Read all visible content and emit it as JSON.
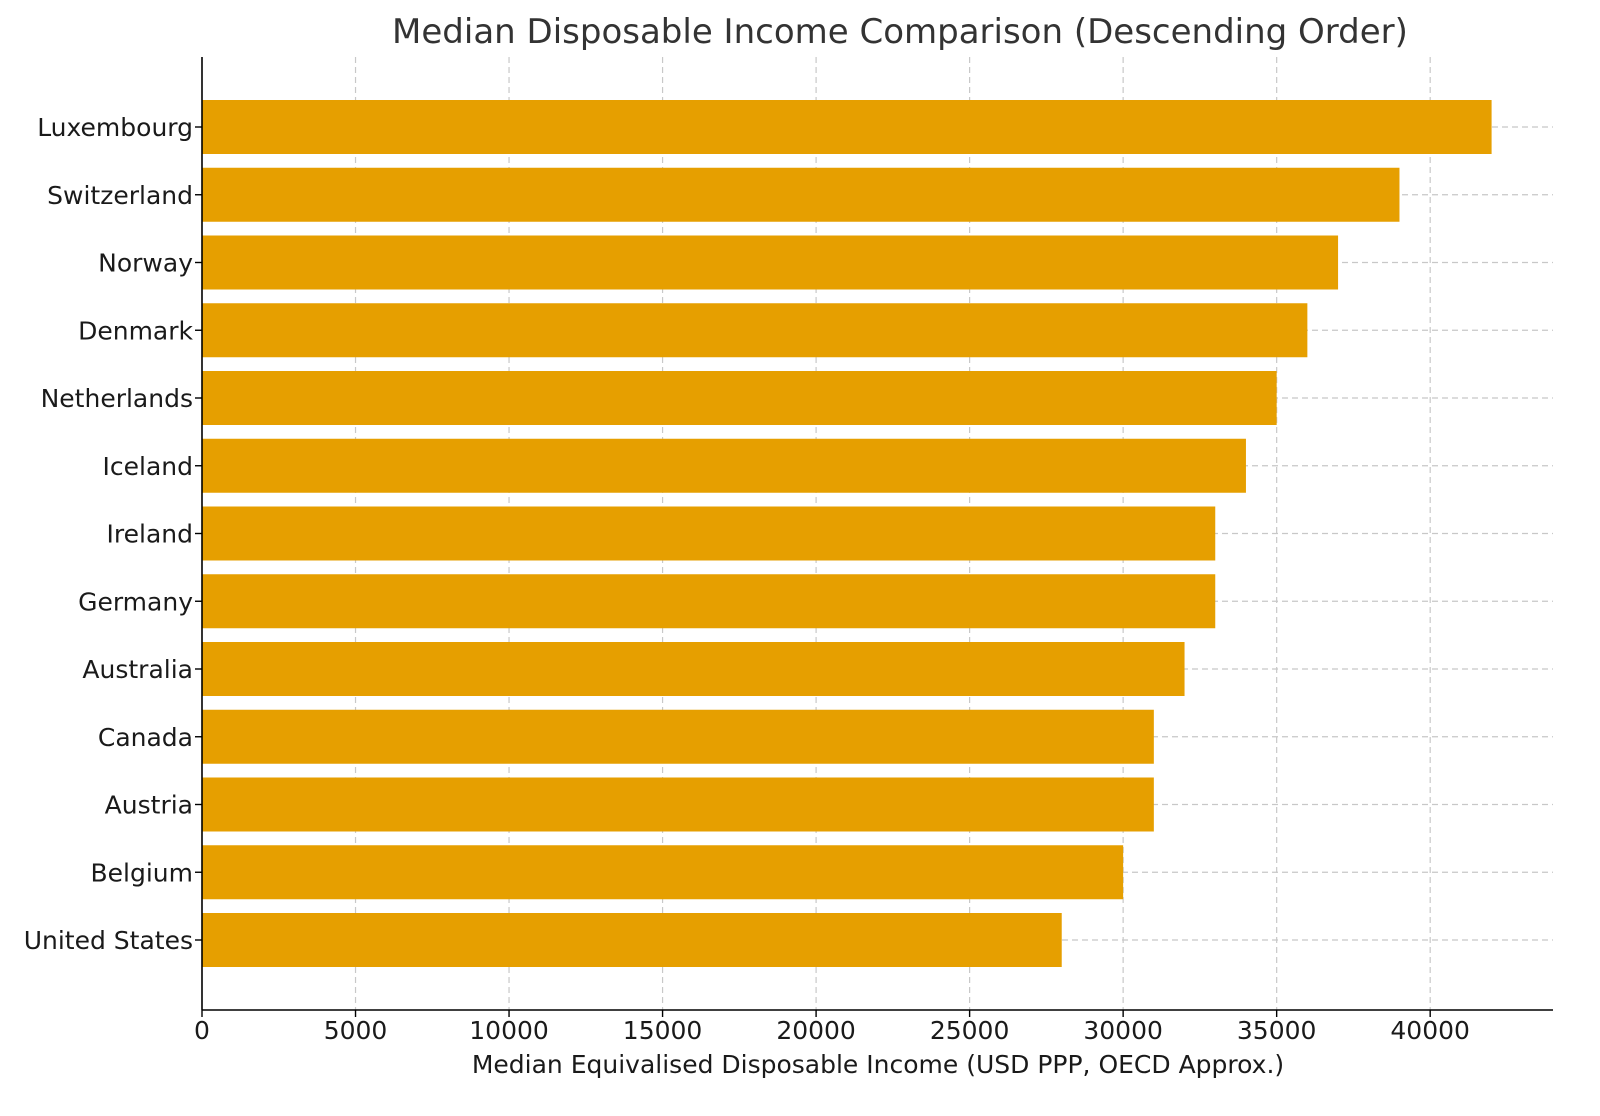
{
  "chart_data": {
    "type": "bar",
    "orientation": "horizontal",
    "title": "Median Disposable Income Comparison (Descending Order)",
    "xlabel": "Median Equivalised Disposable Income (USD PPP, OECD Approx.)",
    "ylabel": "",
    "categories": [
      "Luxembourg",
      "Switzerland",
      "Norway",
      "Denmark",
      "Netherlands",
      "Iceland",
      "Ireland",
      "Germany",
      "Australia",
      "Canada",
      "Austria",
      "Belgium",
      "United States"
    ],
    "values": [
      42000,
      39000,
      37000,
      36000,
      35000,
      34000,
      33000,
      33000,
      32000,
      31000,
      31000,
      30000,
      28000
    ],
    "xlim": [
      0,
      44000
    ],
    "xticks": [
      0,
      5000,
      10000,
      15000,
      20000,
      25000,
      30000,
      35000,
      40000
    ],
    "tick_labels": [
      "0",
      "5000",
      "10000",
      "15000",
      "20000",
      "25000",
      "30000",
      "35000",
      "40000"
    ],
    "bar_color": "#E69F00",
    "grid": true
  }
}
